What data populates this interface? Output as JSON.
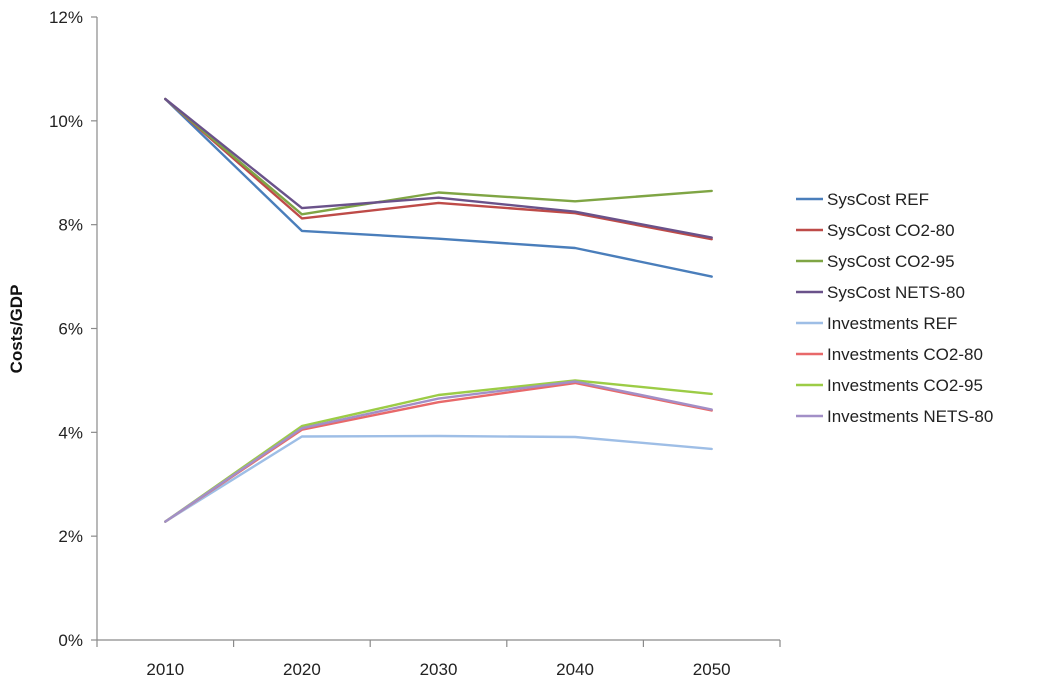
{
  "chart_data": {
    "type": "line",
    "title": "",
    "xlabel": "",
    "ylabel": "Costs/GDP",
    "x": [
      2010,
      2020,
      2030,
      2040,
      2050
    ],
    "xlim": [
      2005,
      2055
    ],
    "ylim": [
      0,
      12
    ],
    "y_ticks": [
      "0%",
      "2%",
      "4%",
      "6%",
      "8%",
      "10%",
      "12%"
    ],
    "x_ticks": [
      "2010",
      "2020",
      "2030",
      "2040",
      "2050"
    ],
    "grid": false,
    "legend_position": "right",
    "series": [
      {
        "name": "SysCost REF",
        "color": "#4a7ebb",
        "values": [
          10.42,
          7.88,
          7.73,
          7.55,
          7.0
        ]
      },
      {
        "name": "SysCost CO2-80",
        "color": "#be4b48",
        "values": [
          10.42,
          8.12,
          8.42,
          8.22,
          7.72
        ]
      },
      {
        "name": "SysCost CO2-95",
        "color": "#7fa544",
        "values": [
          10.42,
          8.2,
          8.62,
          8.45,
          8.65
        ]
      },
      {
        "name": "SysCost NETS-80",
        "color": "#6a528a",
        "values": [
          10.42,
          8.32,
          8.52,
          8.25,
          7.75
        ]
      },
      {
        "name": "Investments REF",
        "color": "#9ebee6",
        "values": [
          2.28,
          3.92,
          3.93,
          3.91,
          3.68
        ]
      },
      {
        "name": "Investments CO2-80",
        "color": "#e8696a",
        "values": [
          2.28,
          4.05,
          4.58,
          4.95,
          4.42
        ]
      },
      {
        "name": "Investments CO2-95",
        "color": "#9ccc46",
        "values": [
          2.28,
          4.12,
          4.72,
          5.0,
          4.74
        ]
      },
      {
        "name": "Investments NETS-80",
        "color": "#a28fc7",
        "values": [
          2.28,
          4.08,
          4.65,
          4.98,
          4.44
        ]
      }
    ]
  }
}
